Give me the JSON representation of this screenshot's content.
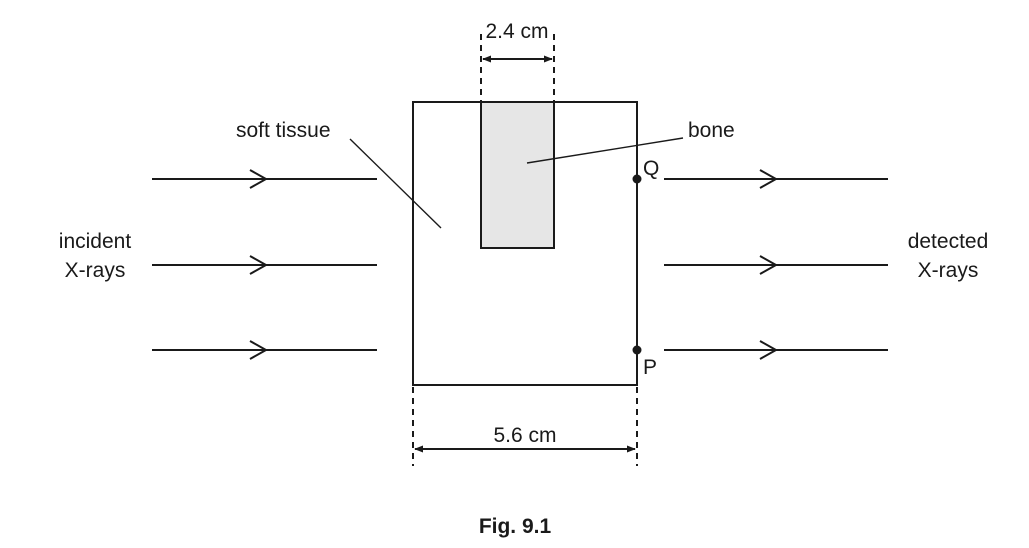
{
  "labels": {
    "soft_tissue": "soft tissue",
    "bone": "bone",
    "point_q": "Q",
    "point_p": "P",
    "incident_line1": "incident",
    "incident_line2": "X-rays",
    "detected_line1": "detected",
    "detected_line2": "X-rays",
    "bone_width": "2.4 cm",
    "block_width": "5.6 cm"
  },
  "caption": "Fig. 9.1",
  "colors": {
    "ink": "#1a1a1a",
    "bone_fill": "#e6e6e6",
    "background": "#ffffff"
  }
}
